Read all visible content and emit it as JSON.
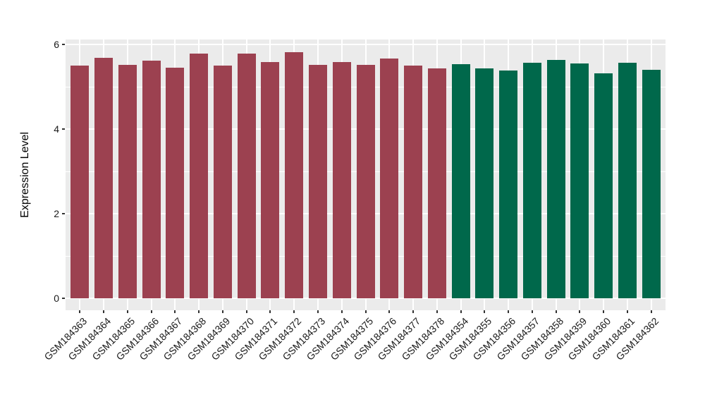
{
  "chart_data": {
    "type": "bar",
    "title": "",
    "xlabel": "",
    "ylabel": "Expression Level",
    "ylim": [
      0,
      6
    ],
    "yticks": [
      0,
      2,
      4,
      6
    ],
    "yticks_minor": [
      1,
      3,
      5
    ],
    "legend_position": "none",
    "grid": "white major+minor horizontal, white vertical at each category, on gray panel",
    "groups": {
      "group1": "#9C4150",
      "group2": "#00684B"
    },
    "bars": [
      {
        "label": "GSM184363",
        "value": 5.5,
        "group": "group1"
      },
      {
        "label": "GSM184364",
        "value": 5.69,
        "group": "group1"
      },
      {
        "label": "GSM184365",
        "value": 5.51,
        "group": "group1"
      },
      {
        "label": "GSM184366",
        "value": 5.61,
        "group": "group1"
      },
      {
        "label": "GSM184367",
        "value": 5.45,
        "group": "group1"
      },
      {
        "label": "GSM184368",
        "value": 5.79,
        "group": "group1"
      },
      {
        "label": "GSM184369",
        "value": 5.5,
        "group": "group1"
      },
      {
        "label": "GSM184370",
        "value": 5.79,
        "group": "group1"
      },
      {
        "label": "GSM184371",
        "value": 5.58,
        "group": "group1"
      },
      {
        "label": "GSM184372",
        "value": 5.81,
        "group": "group1"
      },
      {
        "label": "GSM184373",
        "value": 5.51,
        "group": "group1"
      },
      {
        "label": "GSM184374",
        "value": 5.58,
        "group": "group1"
      },
      {
        "label": "GSM184375",
        "value": 5.52,
        "group": "group1"
      },
      {
        "label": "GSM184376",
        "value": 5.66,
        "group": "group1"
      },
      {
        "label": "GSM184377",
        "value": 5.5,
        "group": "group1"
      },
      {
        "label": "GSM184378",
        "value": 5.43,
        "group": "group1"
      },
      {
        "label": "GSM184354",
        "value": 5.53,
        "group": "group2"
      },
      {
        "label": "GSM184355",
        "value": 5.43,
        "group": "group2"
      },
      {
        "label": "GSM184356",
        "value": 5.38,
        "group": "group2"
      },
      {
        "label": "GSM184357",
        "value": 5.56,
        "group": "group2"
      },
      {
        "label": "GSM184358",
        "value": 5.64,
        "group": "group2"
      },
      {
        "label": "GSM184359",
        "value": 5.55,
        "group": "group2"
      },
      {
        "label": "GSM184360",
        "value": 5.32,
        "group": "group2"
      },
      {
        "label": "GSM184361",
        "value": 5.57,
        "group": "group2"
      },
      {
        "label": "GSM184362",
        "value": 5.4,
        "group": "group2"
      }
    ]
  },
  "colors": {
    "panel_background": "#EBEBEB",
    "gridline": "#FFFFFF",
    "tick_mark": "#333333",
    "tick_text": "#191919",
    "axis_title_text": "#000000",
    "figure_background": "#FFFFFF"
  }
}
